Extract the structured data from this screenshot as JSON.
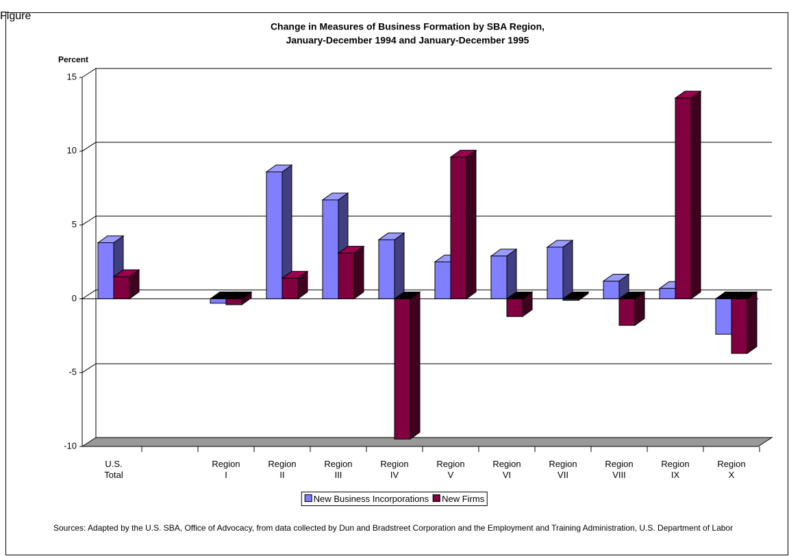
{
  "figure_label": "Figure",
  "chart_data": {
    "type": "bar3d",
    "title": "Change in Measures of Business Formation by SBA Region,",
    "subtitle": "January-December 1994 and January-December 1995",
    "ylabel": "Percent",
    "categories": [
      "U.S.\nTotal",
      null,
      "Region\nI",
      "Region\nII",
      "Region\nIII",
      "Region\nIV",
      "Region\nV",
      "Region\nVI",
      "Region\nVII",
      "Region\nVIII",
      "Region\nIX",
      "Region\nX"
    ],
    "series": [
      {
        "name": "New Business Incorporations",
        "color": "#8080ff",
        "values": [
          3.8,
          null,
          -0.3,
          8.6,
          6.7,
          4.0,
          2.5,
          2.9,
          3.5,
          1.2,
          0.7,
          -2.4
        ]
      },
      {
        "name": "New Firms",
        "color": "#800040",
        "values": [
          1.5,
          null,
          -0.4,
          1.4,
          3.1,
          -9.5,
          9.6,
          -1.2,
          -0.1,
          -1.8,
          13.6,
          -3.7
        ]
      }
    ],
    "ylim": [
      -10,
      15
    ],
    "yticks": [
      -10,
      -5,
      0,
      5,
      10,
      15
    ],
    "grid": true,
    "legend": "bottom",
    "source": "Sources:  Adapted by the U.S. SBA, Office of Advocacy, from data collected by Dun and Bradstreet Corporation and the Employment and Training Administration, U.S. Department of Labor"
  }
}
